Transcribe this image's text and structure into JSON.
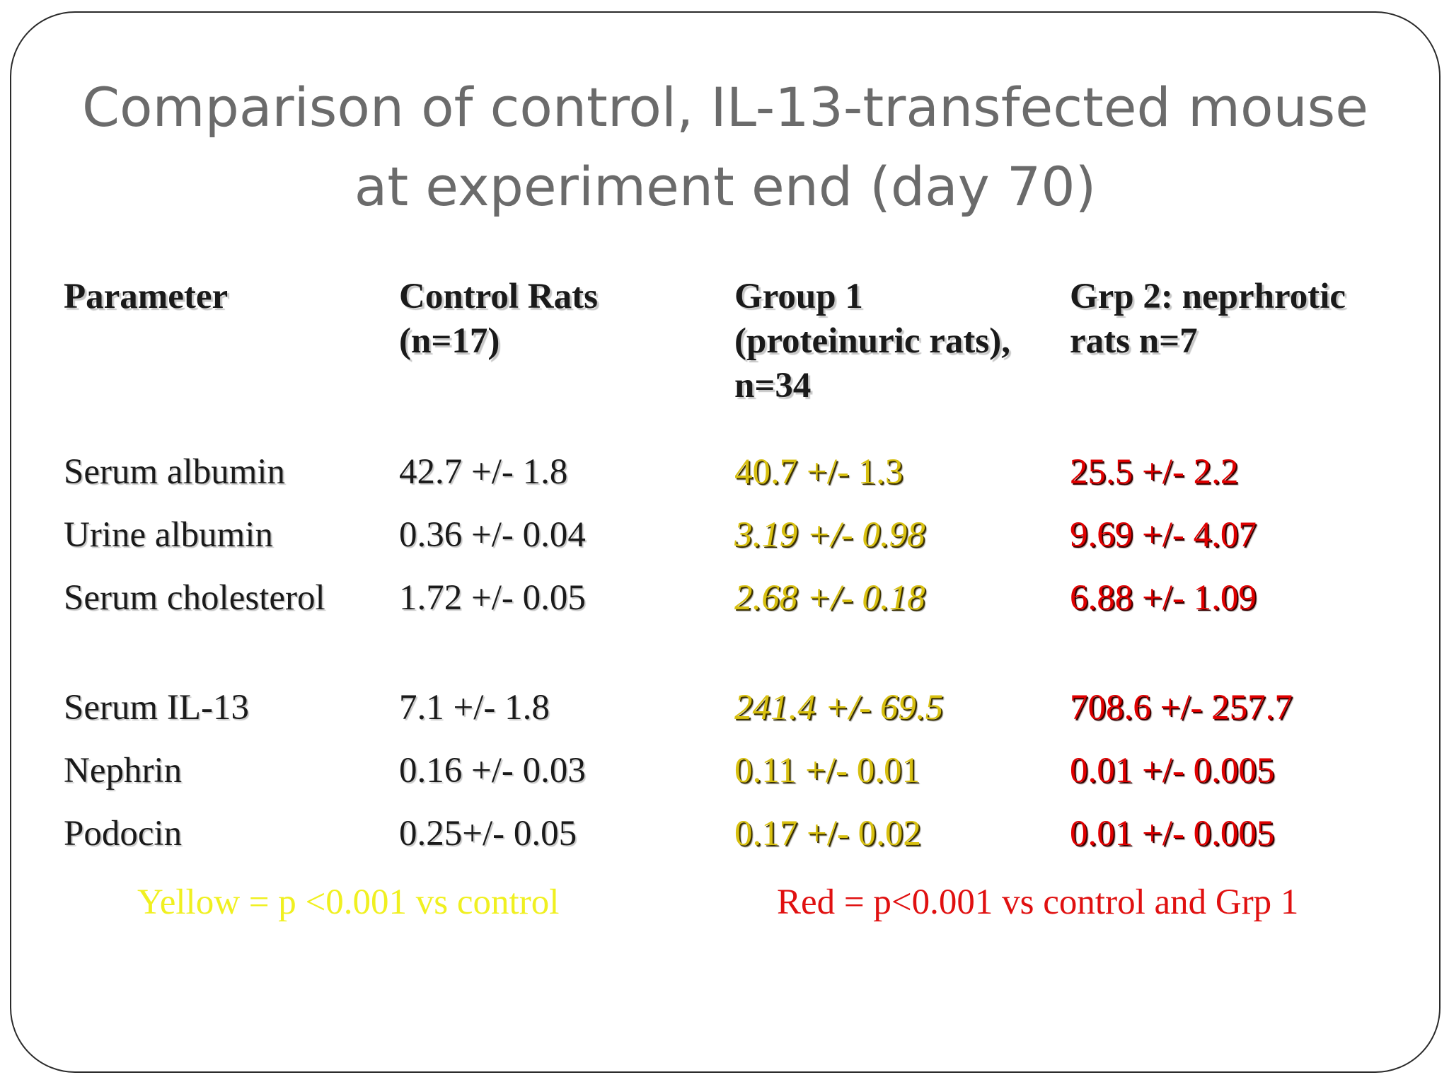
{
  "title": {
    "line1": "Comparison of control, IL-13-transfected mouse",
    "line2": "at experiment end (day 70)"
  },
  "table": {
    "headers": [
      [
        "Parameter"
      ],
      [
        "Control Rats",
        "(n=17)"
      ],
      [
        "Group 1",
        "(proteinuric rats),",
        "n=34"
      ],
      [
        "Grp 2: neprhrotic",
        "rats n=7"
      ]
    ],
    "rows": [
      [
        "Serum albumin",
        "42.7  +/- 1.8",
        "40.7  +/- 1.3",
        "25.5  +/- 2.2"
      ],
      [
        "Urine albumin",
        "0.36 +/- 0.04",
        "3.19  +/- 0.98",
        "9.69  +/- 4.07"
      ],
      [
        "Serum cholesterol",
        "1.72  +/- 0.05",
        "2.68  +/- 0.18",
        "6.88  +/- 1.09"
      ],
      [
        "Serum IL-13",
        "7.1 +/- 1.8",
        "241.4  +/- 69.5",
        "708.6 +/- 257.7"
      ],
      [
        "Nephrin",
        "0.16 +/- 0.03",
        "0.11 +/- 0.01",
        "0.01 +/- 0.005"
      ],
      [
        "Podocin",
        "0.25+/- 0.05",
        "0.17 +/- 0.02",
        "0.01 +/- 0.005"
      ]
    ]
  },
  "legend": {
    "yellow": "Yellow = p <0.001 vs control",
    "red": "Red = p<0.001 vs control and Grp 1"
  },
  "colors": {
    "yellow": "#d8c010",
    "red": "#e00000",
    "title": "#6b6b6b"
  }
}
